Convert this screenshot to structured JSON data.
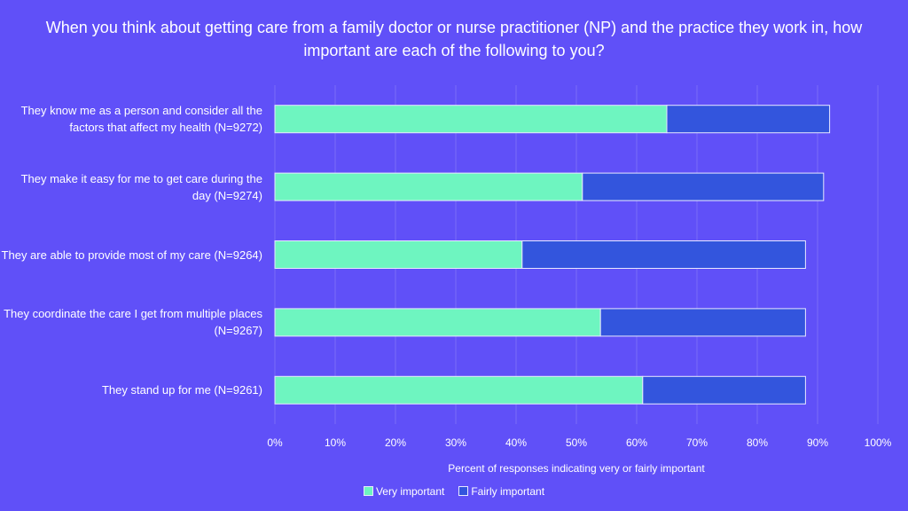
{
  "chart_data": {
    "type": "bar",
    "orientation": "horizontal",
    "stacked": true,
    "title": "When you think about getting care from a family doctor or nurse practitioner (NP) and the practice they work in, how important are each of the following to you?",
    "xlabel": "Percent of responses indicating  very or fairly important",
    "ylabel": "",
    "xlim": [
      0,
      100
    ],
    "xticks": [
      "0%",
      "10%",
      "20%",
      "30%",
      "40%",
      "50%",
      "60%",
      "70%",
      "80%",
      "90%",
      "100%"
    ],
    "categories": [
      "They know me as a person and consider all the factors that affect my health (N=9272)",
      "They make it easy for me to get care during the day (N=9274)",
      "They are able to provide most of my care (N=9264)",
      "They coordinate the care I get from multiple places (N=9267)",
      "They stand up for me (N=9261)"
    ],
    "series": [
      {
        "name": "Very important",
        "color": "#6EF5C0",
        "values": [
          65,
          51,
          41,
          54,
          61
        ]
      },
      {
        "name": "Fairly important",
        "color": "#3355DD",
        "values": [
          27,
          40,
          47,
          34,
          27
        ]
      }
    ],
    "grid": true,
    "legend_position": "bottom"
  },
  "colors": {
    "background": "#6050F8",
    "gridline": "#7A6CF8",
    "bar_border": "#E8E8FF"
  }
}
